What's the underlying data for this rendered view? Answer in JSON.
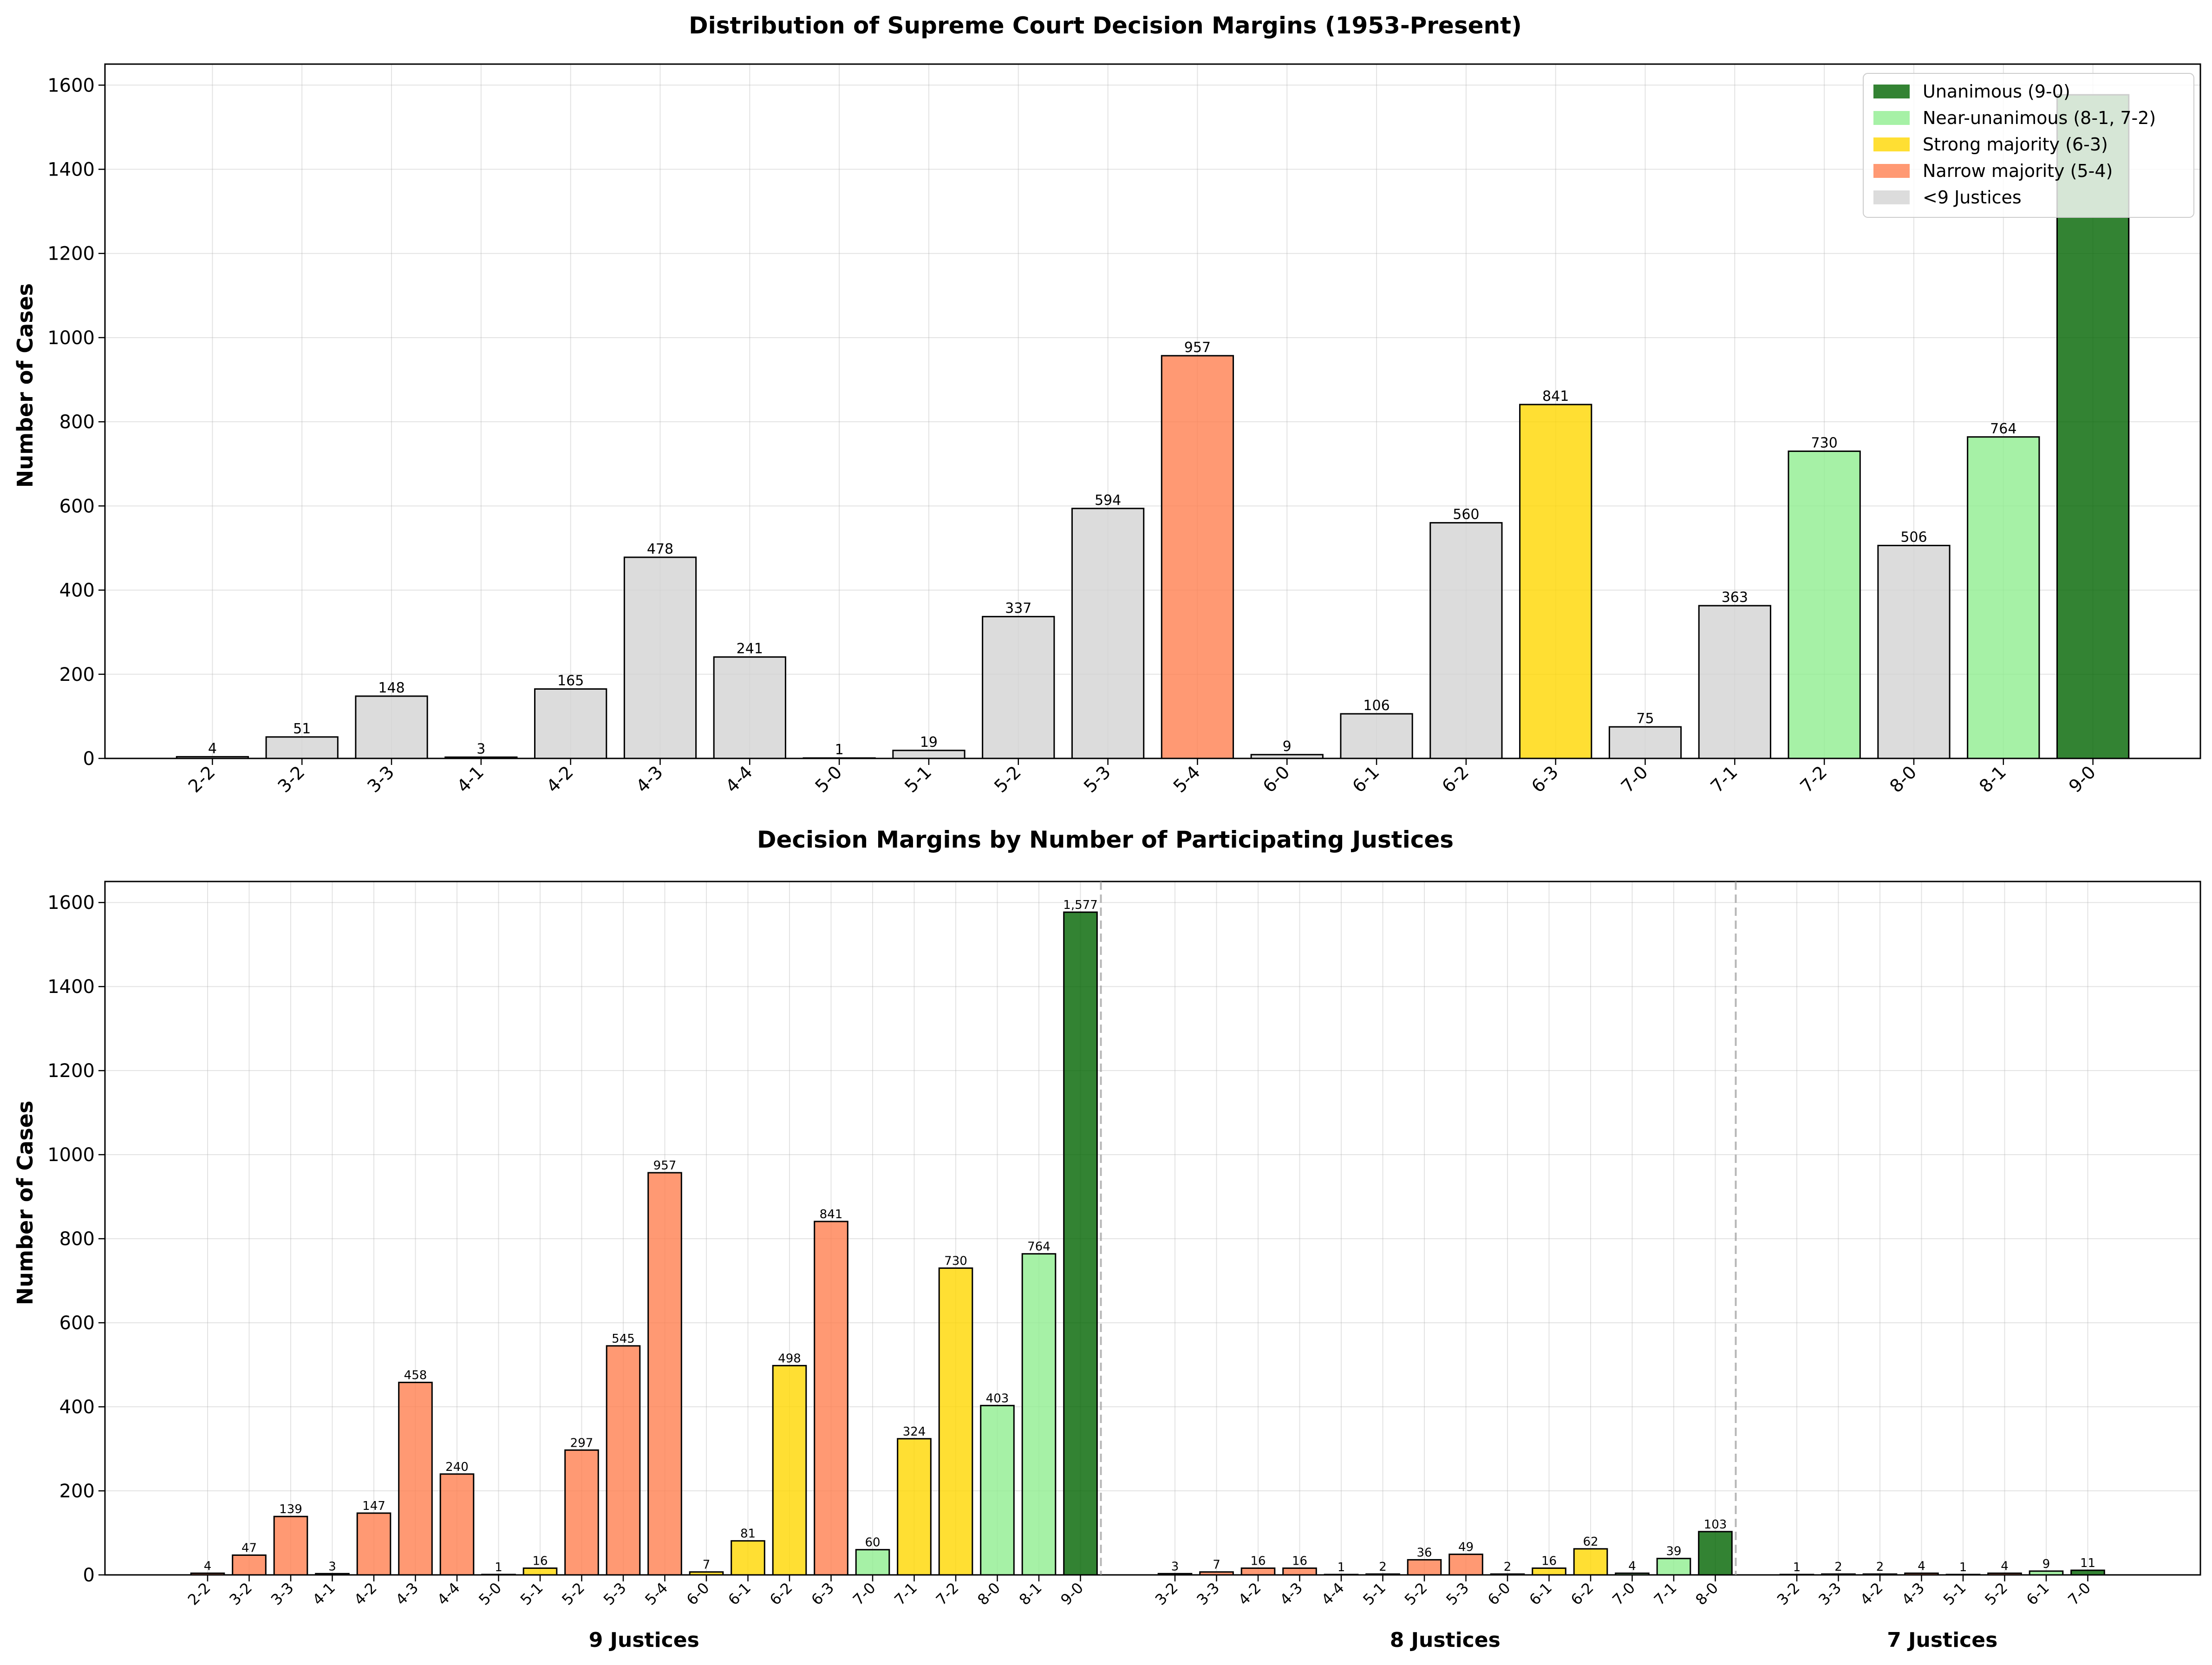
{
  "chart_data": [
    {
      "type": "bar",
      "title": "Distribution of Supreme Court Decision Margins (1953-Present)",
      "xlabel": "",
      "ylabel": "Number of Cases",
      "ylim": [
        0,
        1650
      ],
      "yticks": [
        0,
        200,
        400,
        600,
        800,
        1000,
        1200,
        1400,
        1600
      ],
      "grid": true,
      "legend_position": "top-right",
      "categories": [
        "2-2",
        "3-2",
        "3-3",
        "4-1",
        "4-2",
        "4-3",
        "4-4",
        "5-0",
        "5-1",
        "5-2",
        "5-3",
        "5-4",
        "6-0",
        "6-1",
        "6-2",
        "6-3",
        "7-0",
        "7-1",
        "7-2",
        "8-0",
        "8-1",
        "9-0"
      ],
      "values": [
        4,
        51,
        148,
        3,
        165,
        478,
        241,
        1,
        19,
        337,
        594,
        957,
        9,
        106,
        560,
        841,
        75,
        363,
        730,
        506,
        764,
        1577
      ],
      "value_labels": [
        "4",
        "51",
        "148",
        "3",
        "165",
        "478",
        "241",
        "1",
        "19",
        "337",
        "594",
        "957",
        "9",
        "106",
        "560",
        "841",
        "75",
        "363",
        "730",
        "506",
        "764",
        ""
      ],
      "bar_categories": [
        "other",
        "other",
        "other",
        "other",
        "other",
        "other",
        "other",
        "other",
        "other",
        "other",
        "other",
        "narrow",
        "other",
        "other",
        "other",
        "strong",
        "other",
        "other",
        "near",
        "other",
        "near",
        "unanimous"
      ],
      "legend": [
        {
          "key": "unanimous",
          "label": "Unanimous (9-0)",
          "color": "#006400"
        },
        {
          "key": "near",
          "label": "Near-unanimous (8-1, 7-2)",
          "color": "#90EE90"
        },
        {
          "key": "strong",
          "label": "Strong majority (6-3)",
          "color": "#FFD700"
        },
        {
          "key": "narrow",
          "label": "Narrow majority (5-4)",
          "color": "#FF7F50"
        },
        {
          "key": "other",
          "label": "<9 Justices",
          "color": "#D3D3D3"
        }
      ]
    },
    {
      "type": "bar",
      "title": "Decision Margins by Number of Participating Justices",
      "xlabel": "",
      "ylabel": "Number of Cases",
      "ylim": [
        0,
        1650
      ],
      "yticks": [
        0,
        200,
        400,
        600,
        800,
        1000,
        1200,
        1400,
        1600
      ],
      "grid": true,
      "groups": [
        {
          "label": "9 Justices",
          "categories": [
            "2-2",
            "3-2",
            "3-3",
            "4-1",
            "4-2",
            "4-3",
            "4-4",
            "5-0",
            "5-1",
            "5-2",
            "5-3",
            "5-4",
            "6-0",
            "6-1",
            "6-2",
            "6-3",
            "7-0",
            "7-1",
            "7-2",
            "8-0",
            "8-1",
            "9-0"
          ],
          "values": [
            4,
            47,
            139,
            3,
            147,
            458,
            240,
            1,
            16,
            297,
            545,
            957,
            7,
            81,
            498,
            841,
            60,
            324,
            730,
            403,
            764,
            1577
          ],
          "value_labels": [
            "4",
            "47",
            "139",
            "3",
            "147",
            "458",
            "240",
            "1",
            "16",
            "297",
            "545",
            "957",
            "7",
            "81",
            "498",
            "841",
            "60",
            "324",
            "730",
            "403",
            "764",
            "1,577"
          ],
          "bar_categories": [
            "narrow",
            "narrow",
            "narrow",
            "narrow",
            "narrow",
            "narrow",
            "narrow",
            "strong",
            "strong",
            "narrow",
            "narrow",
            "narrow",
            "strong",
            "strong",
            "strong",
            "narrow",
            "near",
            "strong",
            "strong",
            "near",
            "near",
            "unanimous"
          ]
        },
        {
          "label": "8 Justices",
          "categories": [
            "3-2",
            "3-3",
            "4-2",
            "4-3",
            "4-4",
            "5-1",
            "5-2",
            "5-3",
            "6-0",
            "6-1",
            "6-2",
            "7-0",
            "7-1",
            "8-0"
          ],
          "values": [
            3,
            7,
            16,
            16,
            1,
            2,
            36,
            49,
            2,
            16,
            62,
            4,
            39,
            103
          ],
          "value_labels": [
            "3",
            "7",
            "16",
            "16",
            "1",
            "2",
            "36",
            "49",
            "2",
            "16",
            "62",
            "4",
            "39",
            "103"
          ],
          "bar_categories": [
            "narrow",
            "narrow",
            "narrow",
            "narrow",
            "narrow",
            "strong",
            "narrow",
            "narrow",
            "strong",
            "strong",
            "strong",
            "near",
            "near",
            "unanimous"
          ]
        },
        {
          "label": "7 Justices",
          "categories": [
            "3-2",
            "3-3",
            "4-2",
            "4-3",
            "5-1",
            "5-2",
            "6-1",
            "7-0"
          ],
          "values": [
            1,
            2,
            2,
            4,
            1,
            4,
            9,
            11
          ],
          "value_labels": [
            "1",
            "2",
            "2",
            "4",
            "1",
            "4",
            "9",
            "11"
          ],
          "bar_categories": [
            "narrow",
            "narrow",
            "narrow",
            "narrow",
            "strong",
            "narrow",
            "near",
            "unanimous"
          ]
        }
      ],
      "colors": {
        "unanimous": "#006400",
        "near": "#90EE90",
        "strong": "#FFD700",
        "narrow": "#FF7F50",
        "other": "#D3D3D3"
      }
    }
  ]
}
